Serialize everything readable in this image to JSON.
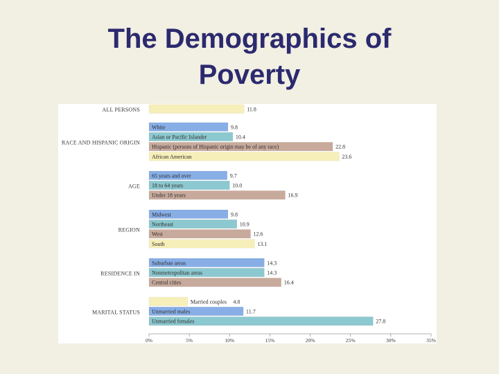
{
  "slide": {
    "title_line1": "The Demographics of",
    "title_line2": "Poverty"
  },
  "colors": {
    "background": "#f2efe3",
    "title": "#2b2a6e",
    "all": "#f7efb9",
    "blue": "#88aee6",
    "teal": "#8cc8cf",
    "tan": "#c8aa9c",
    "yellow": "#f7efb9"
  },
  "chart_data": {
    "type": "bar",
    "orientation": "horizontal",
    "xlim": [
      0,
      35
    ],
    "x_tick_labels": [
      "0%",
      "5%",
      "10%",
      "15%",
      "20%",
      "25%",
      "30%",
      "35%"
    ],
    "groups": [
      {
        "label": "ALL PERSONS",
        "bars": [
          {
            "label": "",
            "value": 11.8,
            "value_label": "11.8",
            "color": "all"
          }
        ]
      },
      {
        "label": "RACE AND HISPANIC ORIGIN",
        "bars": [
          {
            "label": "White",
            "value": 9.8,
            "value_label": "9.8",
            "color": "blue"
          },
          {
            "label": "Asian or Pacific Islander",
            "value": 10.4,
            "value_label": "10.4",
            "color": "teal"
          },
          {
            "label": "Hispanic (persons of Hispanic origin may be of any race)",
            "value": 22.8,
            "value_label": "22.8",
            "color": "tan"
          },
          {
            "label": "African American",
            "value": 23.6,
            "value_label": "23.6",
            "color": "yellow"
          }
        ]
      },
      {
        "label": "AGE",
        "bars": [
          {
            "label": "65 years and over",
            "value": 9.7,
            "value_label": "9.7",
            "color": "blue"
          },
          {
            "label": "18 to 64 years",
            "value": 10.0,
            "value_label": "10.0",
            "color": "teal"
          },
          {
            "label": "Under 18 years",
            "value": 16.9,
            "value_label": "16.9",
            "color": "tan"
          }
        ]
      },
      {
        "label": "REGION",
        "bars": [
          {
            "label": "Midwest",
            "value": 9.8,
            "value_label": "9.8",
            "color": "blue"
          },
          {
            "label": "Northeast",
            "value": 10.9,
            "value_label": "10.9",
            "color": "teal"
          },
          {
            "label": "West",
            "value": 12.6,
            "value_label": "12.6",
            "color": "tan"
          },
          {
            "label": "South",
            "value": 13.1,
            "value_label": "13.1",
            "color": "yellow"
          }
        ]
      },
      {
        "label": "RESIDENCE IN",
        "bars": [
          {
            "label": "Suburban areas",
            "value": 14.3,
            "value_label": "14.3",
            "color": "blue"
          },
          {
            "label": "Nonmetropolitan areas",
            "value": 14.3,
            "value_label": "14.3",
            "color": "teal"
          },
          {
            "label": "Central cities",
            "value": 16.4,
            "value_label": "16.4",
            "color": "tan"
          }
        ]
      },
      {
        "label": "MARITAL STATUS",
        "bars": [
          {
            "label": "Married couples",
            "value": 4.8,
            "value_label": "4.8",
            "color": "yellow",
            "label_outside": true
          },
          {
            "label": "Unmarried males",
            "value": 11.7,
            "value_label": "11.7",
            "color": "blue"
          },
          {
            "label": "Unmarried females",
            "value": 27.8,
            "value_label": "27.8",
            "color": "teal"
          }
        ]
      }
    ]
  }
}
